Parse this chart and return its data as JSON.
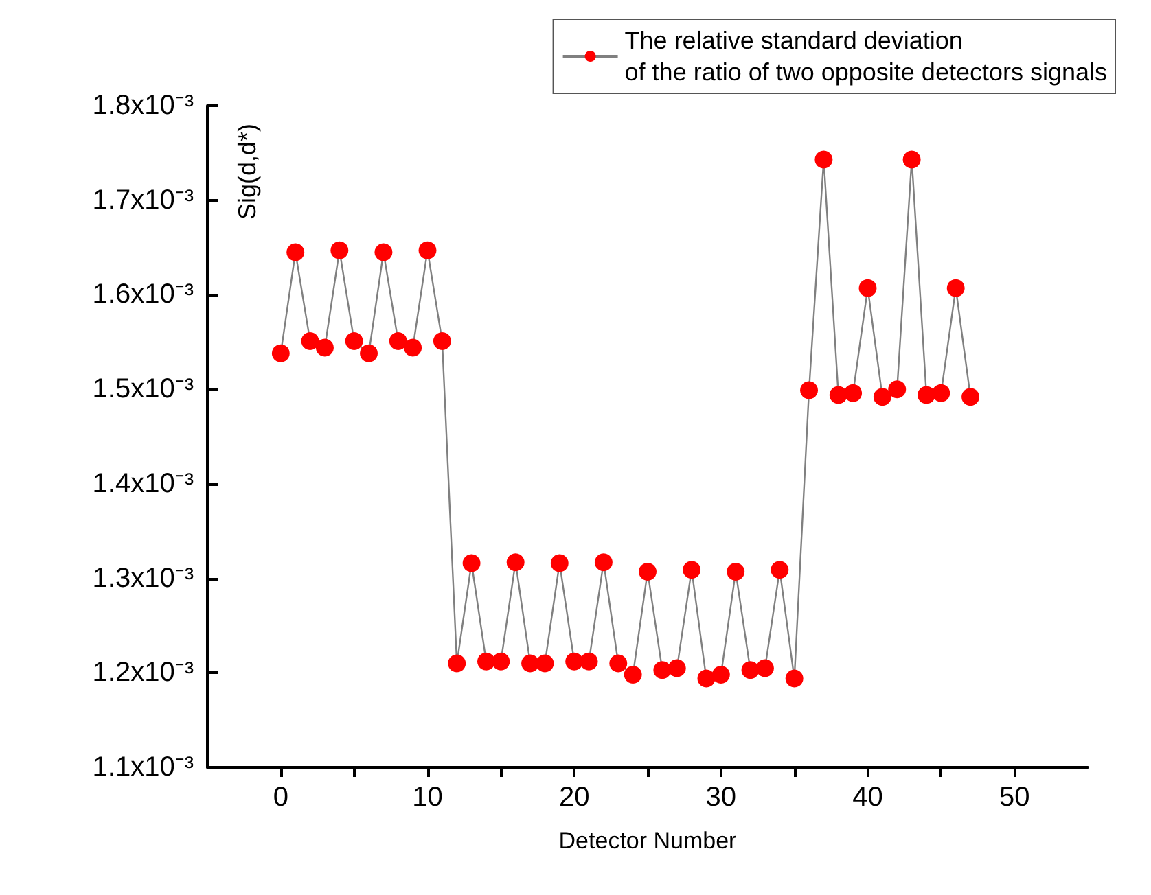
{
  "chart_data": {
    "type": "line",
    "xlabel": "Detector Number",
    "ylabel": "Sig(d,d*)",
    "x": [
      0,
      1,
      2,
      3,
      4,
      5,
      6,
      7,
      8,
      9,
      10,
      11,
      12,
      13,
      14,
      15,
      16,
      17,
      18,
      19,
      20,
      21,
      22,
      23,
      24,
      25,
      26,
      27,
      28,
      29,
      30,
      31,
      32,
      33,
      34,
      35,
      36,
      37,
      38,
      39,
      40,
      41,
      42,
      43,
      44,
      45,
      46,
      47
    ],
    "series": [
      {
        "name": "The relative standard deviation\nof the ratio of two opposite detectors signals",
        "color": "#ff0000",
        "values": [
          0.001538,
          0.001645,
          0.001551,
          0.001544,
          0.001647,
          0.001551,
          0.001538,
          0.001645,
          0.001551,
          0.001544,
          0.001647,
          0.001551,
          0.00121,
          0.001316,
          0.001212,
          0.001212,
          0.001317,
          0.00121,
          0.00121,
          0.001316,
          0.001212,
          0.001212,
          0.001317,
          0.00121,
          0.001198,
          0.001307,
          0.001203,
          0.001205,
          0.001309,
          0.001194,
          0.001198,
          0.001307,
          0.001203,
          0.001205,
          0.001309,
          0.001194,
          0.001499,
          0.001743,
          0.001494,
          0.001496,
          0.001607,
          0.001492,
          0.0015,
          0.001743,
          0.001494,
          0.001496,
          0.001607,
          0.001492
        ]
      }
    ],
    "xlim": [
      -5,
      55
    ],
    "xticks": [
      0,
      {
        "value": 5,
        "label": null
      },
      10,
      {
        "value": 15,
        "label": null
      },
      20,
      {
        "value": 25,
        "label": null
      },
      30,
      {
        "value": 35,
        "label": null
      },
      40,
      {
        "value": 45,
        "label": null
      },
      50
    ],
    "ylim": [
      0.0011,
      0.0018
    ],
    "yticks": [
      {
        "value": 0.0011,
        "label": "1.1x10⁻³"
      },
      {
        "value": 0.0012,
        "label": "1.2x10⁻³"
      },
      {
        "value": 0.0013,
        "label": "1.3x10⁻³"
      },
      {
        "value": 0.0014,
        "label": "1.4x10⁻³"
      },
      {
        "value": 0.0015,
        "label": "1.5x10⁻³"
      },
      {
        "value": 0.0016,
        "label": "1.6x10⁻³"
      },
      {
        "value": 0.0017,
        "label": "1.7x10⁻³"
      },
      {
        "value": 0.0018,
        "label": "1.8x10⁻³"
      }
    ],
    "grid": false,
    "legend": "top right",
    "marker": "circle",
    "line_style": "solid"
  }
}
